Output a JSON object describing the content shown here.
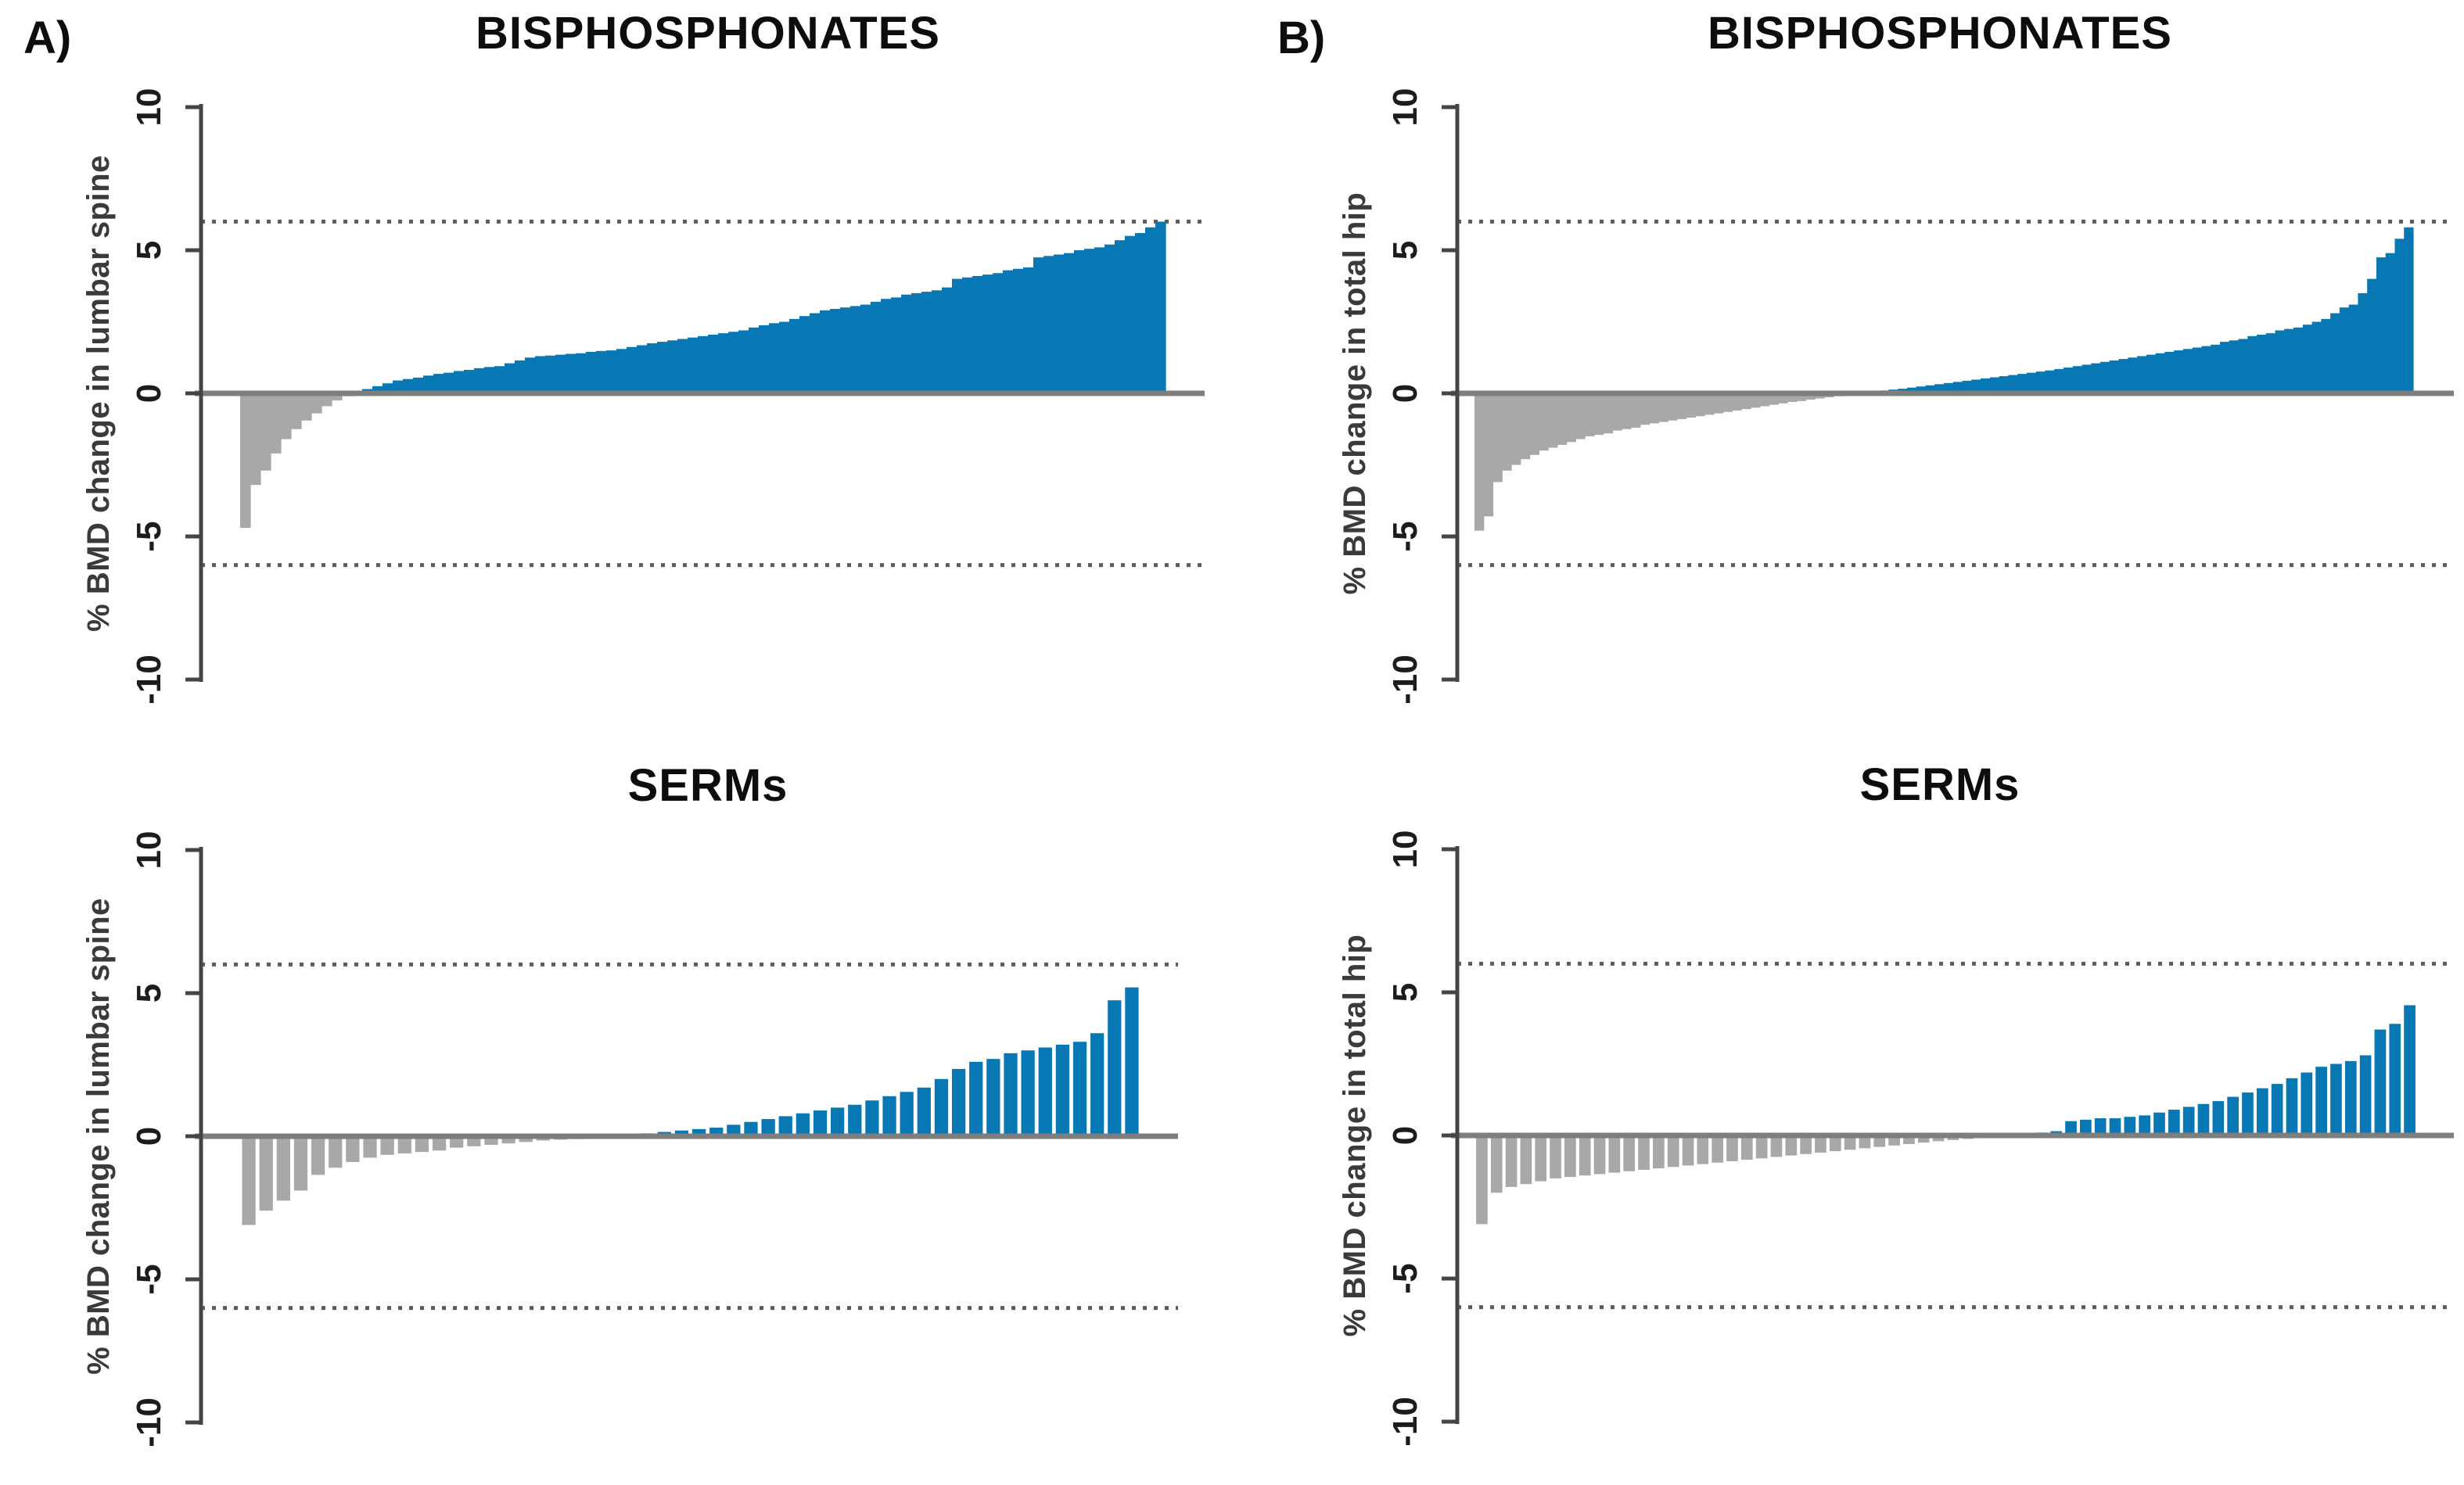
{
  "figure": {
    "background": "#ffffff",
    "description": "Waterfall plots of individual % BMD change, by drug class and skeletal site"
  },
  "colors": {
    "positive_bar": "#0878b4",
    "negative_bar": "#a8a8a8",
    "zero_line": "#7e7e7e",
    "threshold_line": "#5c5c5c",
    "axis": "#454545",
    "tick_label": "#1c1c1c",
    "axis_label": "#3a3a3a",
    "title": "#0d0d0d"
  },
  "chart_data": [
    {
      "type": "bar",
      "panel": "A)",
      "title": "BISPHOSPHONATES",
      "ylabel": "% BMD change in lumbar spine",
      "ylim": [
        -10,
        10
      ],
      "yticks": [
        10,
        5,
        0,
        -5,
        -10
      ],
      "thresholds": [
        6,
        -6
      ],
      "grid": false,
      "legend": "none",
      "values": [
        -4.7,
        -3.2,
        -2.7,
        -2.1,
        -1.6,
        -1.25,
        -0.95,
        -0.7,
        -0.45,
        -0.25,
        -0.1,
        0.05,
        0.15,
        0.25,
        0.35,
        0.45,
        0.5,
        0.55,
        0.62,
        0.68,
        0.72,
        0.78,
        0.82,
        0.88,
        0.92,
        0.95,
        1.05,
        1.15,
        1.25,
        1.3,
        1.32,
        1.35,
        1.38,
        1.4,
        1.45,
        1.48,
        1.5,
        1.55,
        1.62,
        1.68,
        1.75,
        1.8,
        1.85,
        1.9,
        1.95,
        2.0,
        2.05,
        2.1,
        2.15,
        2.2,
        2.3,
        2.38,
        2.45,
        2.5,
        2.6,
        2.7,
        2.8,
        2.9,
        2.95,
        3.0,
        3.05,
        3.1,
        3.2,
        3.3,
        3.35,
        3.45,
        3.5,
        3.55,
        3.6,
        3.7,
        4.0,
        4.05,
        4.1,
        4.15,
        4.2,
        4.3,
        4.35,
        4.4,
        4.75,
        4.8,
        4.85,
        4.9,
        5.0,
        5.05,
        5.1,
        5.2,
        5.35,
        5.5,
        5.6,
        5.8,
        6.0
      ]
    },
    {
      "type": "bar",
      "panel": "B)",
      "title": "BISPHOSPHONATES",
      "ylabel": "% BMD change in total hip",
      "ylim": [
        -10,
        10
      ],
      "yticks": [
        10,
        5,
        0,
        -5,
        -10
      ],
      "thresholds": [
        6,
        -6
      ],
      "grid": false,
      "legend": "none",
      "values": [
        -4.8,
        -4.3,
        -3.1,
        -2.7,
        -2.5,
        -2.3,
        -2.15,
        -2.0,
        -1.9,
        -1.8,
        -1.7,
        -1.6,
        -1.5,
        -1.45,
        -1.4,
        -1.3,
        -1.25,
        -1.2,
        -1.1,
        -1.05,
        -1.0,
        -0.95,
        -0.9,
        -0.85,
        -0.8,
        -0.75,
        -0.7,
        -0.65,
        -0.6,
        -0.55,
        -0.5,
        -0.45,
        -0.4,
        -0.35,
        -0.3,
        -0.27,
        -0.22,
        -0.18,
        -0.14,
        -0.1,
        -0.07,
        -0.04,
        0.03,
        0.06,
        0.1,
        0.13,
        0.16,
        0.2,
        0.24,
        0.28,
        0.32,
        0.36,
        0.4,
        0.44,
        0.48,
        0.52,
        0.56,
        0.6,
        0.64,
        0.68,
        0.72,
        0.76,
        0.8,
        0.85,
        0.9,
        0.95,
        1.0,
        1.05,
        1.1,
        1.15,
        1.2,
        1.25,
        1.3,
        1.35,
        1.4,
        1.45,
        1.5,
        1.55,
        1.6,
        1.65,
        1.7,
        1.8,
        1.85,
        1.9,
        2.0,
        2.05,
        2.1,
        2.2,
        2.25,
        2.3,
        2.4,
        2.5,
        2.6,
        2.8,
        3.0,
        3.1,
        3.5,
        4.0,
        4.75,
        4.9,
        5.4,
        5.8
      ]
    },
    {
      "type": "bar",
      "panel": "",
      "title": "SERMs",
      "ylabel": "% BMD change in lumbar spine",
      "ylim": [
        -10,
        10
      ],
      "yticks": [
        10,
        5,
        0,
        -5,
        -10
      ],
      "thresholds": [
        6,
        -6
      ],
      "grid": false,
      "legend": "none",
      "values": [
        -3.1,
        -2.6,
        -2.25,
        -1.9,
        -1.35,
        -1.1,
        -0.9,
        -0.75,
        -0.65,
        -0.6,
        -0.55,
        -0.5,
        -0.4,
        -0.35,
        -0.3,
        -0.25,
        -0.2,
        -0.15,
        -0.12,
        -0.1,
        -0.07,
        -0.04,
        0.05,
        0.1,
        0.15,
        0.2,
        0.25,
        0.3,
        0.4,
        0.5,
        0.6,
        0.7,
        0.8,
        0.9,
        1.0,
        1.1,
        1.25,
        1.4,
        1.55,
        1.7,
        2.0,
        2.35,
        2.6,
        2.7,
        2.9,
        3.0,
        3.1,
        3.2,
        3.3,
        3.6,
        4.75,
        5.2
      ]
    },
    {
      "type": "bar",
      "panel": "",
      "title": "SERMs",
      "ylabel": "% BMD change in total hip",
      "ylim": [
        -10,
        10
      ],
      "yticks": [
        10,
        5,
        0,
        -5,
        -10
      ],
      "thresholds": [
        6,
        -6
      ],
      "grid": false,
      "legend": "none",
      "values": [
        -3.1,
        -2.0,
        -1.8,
        -1.7,
        -1.6,
        -1.5,
        -1.45,
        -1.4,
        -1.35,
        -1.3,
        -1.25,
        -1.2,
        -1.15,
        -1.1,
        -1.05,
        -1.0,
        -0.95,
        -0.9,
        -0.85,
        -0.8,
        -0.75,
        -0.7,
        -0.65,
        -0.6,
        -0.55,
        -0.5,
        -0.45,
        -0.4,
        -0.35,
        -0.3,
        -0.25,
        -0.2,
        -0.16,
        -0.12,
        -0.09,
        -0.06,
        -0.03,
        0.05,
        0.1,
        0.15,
        0.5,
        0.55,
        0.6,
        0.6,
        0.65,
        0.7,
        0.8,
        0.9,
        1.0,
        1.1,
        1.2,
        1.35,
        1.5,
        1.65,
        1.8,
        2.0,
        2.2,
        2.4,
        2.5,
        2.6,
        2.8,
        3.7,
        3.9,
        4.55
      ]
    }
  ]
}
